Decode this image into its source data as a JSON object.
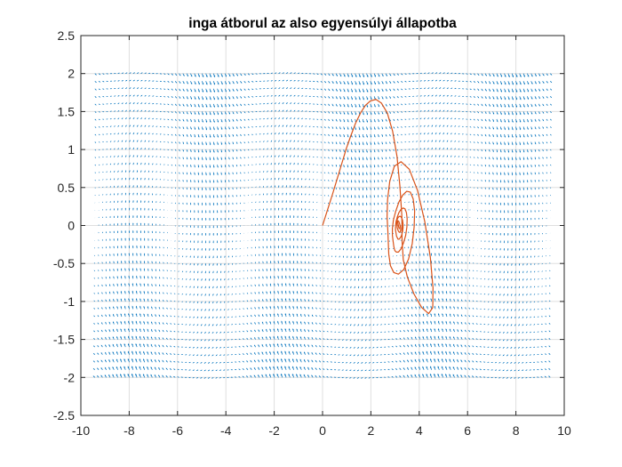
{
  "chart_data": {
    "type": "line",
    "title": "inga átborul az also egyensúlyi állapotba",
    "xlabel": "",
    "ylabel": "",
    "xlim": [
      -10,
      10
    ],
    "ylim": [
      -2.5,
      2.5
    ],
    "x_ticks": [
      -10,
      -8,
      -6,
      -4,
      -2,
      0,
      2,
      4,
      6,
      8,
      10
    ],
    "y_ticks": [
      -2.5,
      -2,
      -1.5,
      -1,
      -0.5,
      0,
      0.5,
      1,
      1.5,
      2,
      2.5
    ],
    "x_tick_labels": [
      "-10",
      "-8",
      "-6",
      "-4",
      "-2",
      "0",
      "2",
      "4",
      "6",
      "8",
      "10"
    ],
    "y_tick_labels": [
      "-2.5",
      "-2",
      "-1.5",
      "-1",
      "-0.5",
      "0",
      "0.5",
      "1",
      "1.5",
      "2",
      "2.5"
    ],
    "grid": true,
    "box": true,
    "series": [
      {
        "kind": "quiver",
        "color": "#0072BD",
        "x_range": [
          -9.42,
          9.42
        ],
        "y_range": [
          -2,
          2
        ],
        "rows": 41,
        "columns": 120,
        "field": "theta' = omega, omega' = -sin(theta) - 0.3 omega"
      },
      {
        "kind": "trajectory",
        "color": "#D95319",
        "x": [
          0,
          0.21,
          0.42,
          0.62,
          0.81,
          0.99,
          1.18,
          1.37,
          1.57,
          1.77,
          1.98,
          2.21,
          2.44,
          2.68,
          2.9,
          3.08,
          3.2,
          3.28,
          3.29,
          3.34,
          3.51,
          3.78,
          4.1,
          4.39,
          4.56,
          4.57,
          4.46,
          4.23,
          3.93,
          3.59,
          3.25,
          2.97,
          2.78,
          2.69,
          2.67,
          2.7,
          2.72,
          2.74,
          2.81,
          2.95,
          3.14,
          3.36,
          3.56,
          3.71,
          3.79,
          3.81,
          3.75,
          3.63,
          3.48,
          3.32,
          3.16,
          3.03,
          2.93,
          2.89,
          2.89,
          2.92,
          2.95,
          2.99,
          3.05,
          3.14,
          3.24,
          3.35,
          3.44,
          3.49,
          3.5,
          3.47,
          3.41,
          3.33,
          3.24,
          3.16,
          3.09,
          3.04,
          3.02,
          3.02,
          3.04,
          3.06,
          3.09,
          3.12,
          3.17,
          3.22,
          3.27,
          3.31,
          3.33,
          3.33,
          3.31,
          3.27,
          3.23,
          3.18,
          3.14,
          3.1,
          3.08,
          3.07,
          3.08,
          3.09,
          3.11,
          3.13,
          3.15,
          3.18,
          3.2,
          3.22,
          3.23,
          3.23,
          3.22,
          3.2,
          3.18,
          3.16,
          3.14,
          3.12,
          3.11,
          3.11,
          3.12,
          3.13,
          3.14,
          3.15,
          3.16,
          3.17,
          3.18,
          3.18,
          3.17,
          3.16,
          3.15,
          3.14,
          3.13,
          3.13,
          3.13,
          3.14,
          3.14
        ],
        "y": [
          0,
          0.21,
          0.42,
          0.63,
          0.83,
          1.02,
          1.19,
          1.35,
          1.48,
          1.58,
          1.64,
          1.66,
          1.61,
          1.48,
          1.24,
          0.91,
          0.52,
          0.13,
          -0.2,
          -0.45,
          -0.68,
          -0.9,
          -1.08,
          -1.16,
          -1.08,
          -0.82,
          -0.42,
          0.05,
          0.46,
          0.74,
          0.84,
          0.78,
          0.58,
          0.34,
          0.12,
          -0.06,
          -0.22,
          -0.38,
          -0.53,
          -0.62,
          -0.64,
          -0.58,
          -0.44,
          -0.24,
          -0.02,
          0.19,
          0.35,
          0.44,
          0.45,
          0.4,
          0.31,
          0.19,
          0.07,
          -0.04,
          -0.13,
          -0.21,
          -0.28,
          -0.33,
          -0.35,
          -0.35,
          -0.31,
          -0.23,
          -0.13,
          -0.02,
          0.09,
          0.17,
          0.22,
          0.23,
          0.21,
          0.17,
          0.11,
          0.05,
          -0.01,
          -0.06,
          -0.1,
          -0.14,
          -0.16,
          -0.18,
          -0.18,
          -0.16,
          -0.13,
          -0.08,
          -0.03,
          0.02,
          0.07,
          0.1,
          0.12,
          0.12,
          0.11,
          0.09,
          0.06,
          0.03,
          0,
          -0.03,
          -0.05,
          -0.07,
          -0.08,
          -0.09,
          -0.09,
          -0.08,
          -0.06,
          -0.04,
          -0.01,
          0.01,
          0.03,
          0.05,
          0.06,
          0.06,
          0.05,
          0.04,
          0.03,
          0.01,
          0,
          -0.01,
          -0.02,
          -0.03,
          -0.04,
          -0.04,
          -0.04,
          -0.03,
          -0.02,
          -0.01,
          0,
          0.01,
          0.02,
          0.02,
          0.02
        ]
      }
    ]
  }
}
